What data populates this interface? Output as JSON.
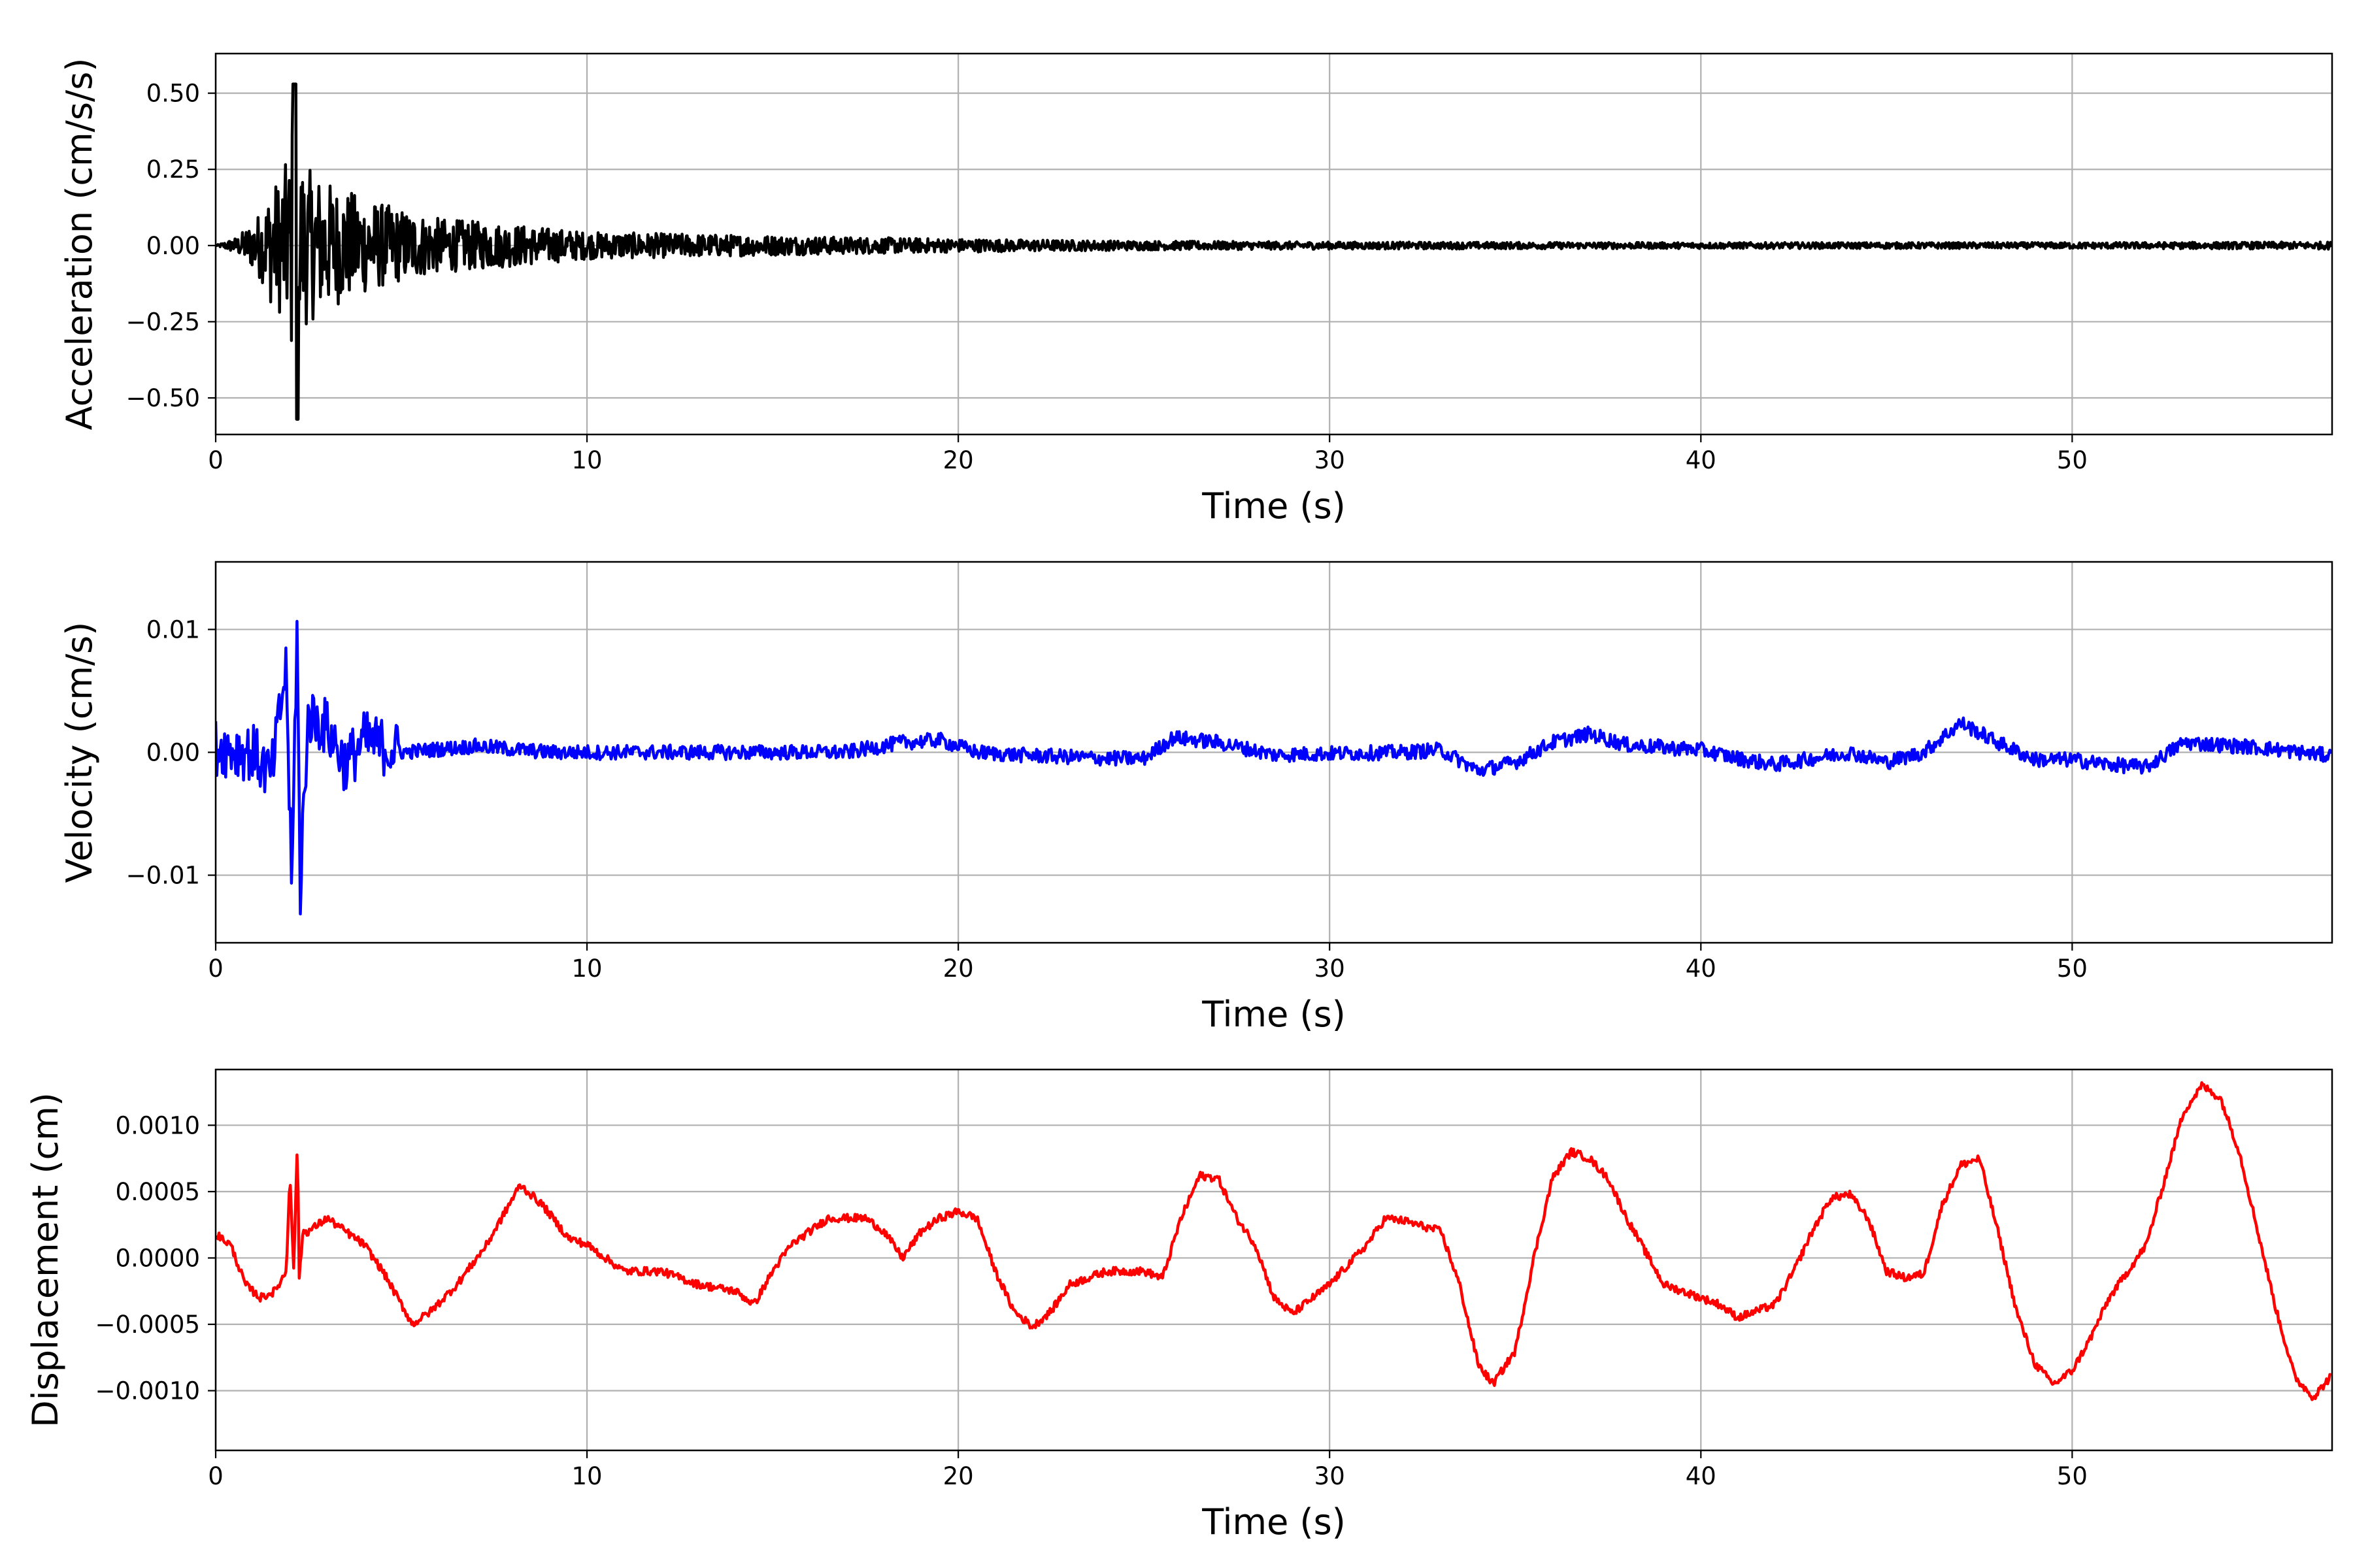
{
  "chart_data": [
    {
      "type": "line",
      "xlabel": "Time (s)",
      "ylabel": "Acceleration (cm/s/s)",
      "xlim": [
        0,
        57
      ],
      "ylim": [
        -0.62,
        0.63
      ],
      "xticks": [
        0,
        10,
        20,
        30,
        40,
        50
      ],
      "xtick_labels": [
        "0",
        "10",
        "20",
        "30",
        "40",
        "50"
      ],
      "yticks": [
        -0.5,
        -0.25,
        0.0,
        0.25,
        0.5
      ],
      "ytick_labels": [
        "−0.50",
        "−0.25",
        "0.00",
        "0.25",
        "0.50"
      ],
      "grid": true,
      "color": "#000000",
      "series": [
        {
          "x": [
            0,
            0.6,
            1.0,
            1.3,
            1.5,
            1.7,
            1.85,
            2.0,
            2.12,
            2.2,
            2.25,
            2.35,
            2.5,
            2.7,
            2.9,
            3.2,
            3.6,
            4.2,
            5.0,
            6.0,
            8.0,
            10.0,
            14.0,
            17.0,
            20.0,
            25.0,
            30.0,
            40.0,
            50.0,
            57.0
          ],
          "y": [
            0.0,
            0.03,
            0.08,
            0.13,
            0.2,
            0.22,
            0.26,
            0.3,
            0.53,
            -0.57,
            0.35,
            0.28,
            0.25,
            0.24,
            0.22,
            0.2,
            0.18,
            0.15,
            0.12,
            0.09,
            0.07,
            0.045,
            0.035,
            0.028,
            0.022,
            0.015,
            0.012,
            0.01,
            0.01,
            0.012
          ]
        }
      ]
    },
    {
      "type": "line",
      "xlabel": "Time (s)",
      "ylabel": "Velocity (cm/s)",
      "xlim": [
        0,
        57
      ],
      "ylim": [
        -0.0155,
        0.0155
      ],
      "xticks": [
        0,
        10,
        20,
        30,
        40,
        50
      ],
      "xtick_labels": [
        "0",
        "10",
        "20",
        "30",
        "40",
        "50"
      ],
      "yticks": [
        -0.01,
        0.0,
        0.01
      ],
      "ytick_labels": [
        "−0.01",
        "0.00",
        "0.01"
      ],
      "grid": true,
      "color": "#0000ff",
      "series": [
        {
          "x": [
            0,
            1.0,
            1.5,
            1.9,
            2.05,
            2.12,
            2.2,
            2.28,
            2.35,
            2.5,
            3.0,
            3.5,
            4.0,
            5.0,
            7.0,
            9.0,
            11.0,
            14.0,
            17.0,
            18.5,
            19.5,
            20.5,
            21.5,
            24.0,
            25.0,
            25.8,
            27.0,
            28.5,
            30.0,
            32.0,
            33.0,
            34.0,
            35.0,
            36.0,
            37.0,
            38.0,
            40.0,
            41.0,
            42.0,
            44.0,
            45.0,
            46.0,
            47.0,
            48.0,
            49.0,
            50.0,
            51.0,
            52.0,
            53.0,
            55.0,
            57.0
          ],
          "y": [
            0.0005,
            0.0,
            -0.002,
            0.007,
            -0.012,
            0.0,
            0.0112,
            -0.014,
            -0.005,
            0.003,
            0.002,
            -0.001,
            0.001,
            0.0,
            0.0005,
            0.0,
            0.0,
            0.0,
            0.0,
            0.0008,
            0.001,
            0.0,
            -0.0002,
            -0.0005,
            -0.0005,
            0.0012,
            0.0008,
            -0.0002,
            -0.0001,
            0.0,
            0.0002,
            -0.0015,
            -0.0008,
            0.0008,
            0.0015,
            0.0006,
            0.0002,
            -0.0005,
            -0.001,
            0.0,
            -0.0008,
            0.0,
            0.0024,
            0.0008,
            -0.0006,
            -0.0006,
            -0.001,
            -0.0012,
            0.0008,
            0.0004,
            -0.0003
          ]
        }
      ]
    },
    {
      "type": "line",
      "xlabel": "Time (s)",
      "ylabel": "Displacement (cm)",
      "xlim": [
        0,
        57
      ],
      "ylim": [
        -0.00145,
        0.00142
      ],
      "xticks": [
        0,
        10,
        20,
        30,
        40,
        50
      ],
      "xtick_labels": [
        "0",
        "10",
        "20",
        "30",
        "40",
        "50"
      ],
      "yticks": [
        -0.001,
        -0.0005,
        0.0,
        0.0005,
        0.001
      ],
      "ytick_labels": [
        "−0.0010",
        "−0.0005",
        "0.0000",
        "0.0005",
        "0.0010"
      ],
      "grid": true,
      "color": "#ff0000",
      "series": [
        {
          "x": [
            0,
            0.4,
            0.8,
            1.2,
            1.6,
            1.9,
            2.0,
            2.1,
            2.2,
            2.25,
            2.35,
            2.5,
            3.0,
            3.5,
            4.0,
            4.5,
            5.3,
            5.8,
            6.5,
            7.3,
            8.2,
            8.8,
            9.5,
            10.0,
            11.0,
            12.0,
            13.0,
            14.0,
            14.5,
            15.0,
            15.5,
            16.5,
            17.5,
            18.0,
            18.5,
            19.0,
            19.5,
            20.0,
            20.5,
            21.0,
            21.5,
            22.0,
            22.5,
            23.0,
            24.0,
            25.0,
            25.5,
            26.0,
            26.5,
            27.0,
            27.5,
            28.0,
            28.5,
            29.0,
            30.0,
            31.0,
            31.5,
            32.0,
            33.0,
            33.5,
            34.0,
            34.4,
            35.0,
            35.5,
            36.0,
            36.5,
            37.0,
            37.5,
            38.0,
            39.0,
            40.0,
            40.5,
            41.0,
            41.5,
            42.0,
            42.5,
            43.0,
            43.5,
            44.0,
            44.5,
            45.0,
            45.5,
            46.0,
            46.5,
            47.0,
            47.5,
            48.0,
            48.5,
            49.0,
            49.5,
            50.0,
            50.5,
            51.0,
            51.5,
            52.0,
            52.5,
            53.0,
            53.5,
            54.0,
            54.5,
            55.0,
            55.5,
            56.0,
            56.5,
            57.0
          ],
          "y": [
            0.00018,
            0.0001,
            -0.0002,
            -0.0003,
            -0.00025,
            -0.0001,
            0.00065,
            -0.0001,
            0.0009,
            -0.00015,
            0.0002,
            0.0002,
            0.0003,
            0.0002,
            0.0001,
            -0.0001,
            -0.0005,
            -0.0004,
            -0.0002,
            0.0001,
            0.00055,
            0.0004,
            0.00015,
            0.0001,
            -0.0001,
            -0.0001,
            -0.0002,
            -0.00025,
            -0.00035,
            -0.0001,
            0.0001,
            0.0003,
            0.0003,
            0.0002,
            0.0,
            0.0002,
            0.0003,
            0.00035,
            0.0003,
            -0.0001,
            -0.0004,
            -0.00052,
            -0.0004,
            -0.0002,
            -0.0001,
            -0.0001,
            -0.00015,
            0.0003,
            0.00062,
            0.0006,
            0.0003,
            0.0001,
            -0.0003,
            -0.00042,
            -0.0002,
            0.0001,
            0.0003,
            0.00028,
            0.0002,
            -0.0002,
            -0.0008,
            -0.00095,
            -0.0007,
            0.0,
            0.0006,
            0.0008,
            0.00075,
            0.0006,
            0.0003,
            -0.0002,
            -0.0003,
            -0.00035,
            -0.00045,
            -0.0004,
            -0.00035,
            -0.0001,
            0.0002,
            0.00045,
            0.00048,
            0.0003,
            -0.0001,
            -0.00015,
            -0.00012,
            0.0004,
            0.0007,
            0.00075,
            0.0002,
            -0.0004,
            -0.0008,
            -0.00095,
            -0.00085,
            -0.0006,
            -0.0003,
            -0.0001,
            0.0001,
            0.0006,
            0.0011,
            0.0013,
            0.0012,
            0.0008,
            0.0002,
            -0.0004,
            -0.0009,
            -0.00105,
            -0.00088
          ]
        }
      ]
    }
  ]
}
